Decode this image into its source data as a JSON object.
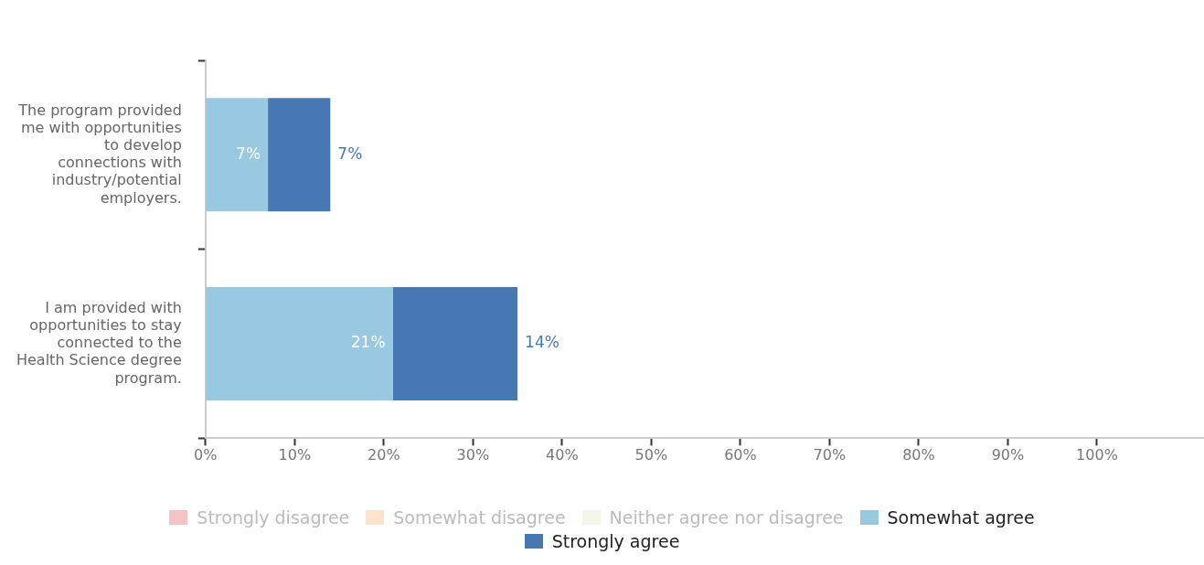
{
  "chart_data": {
    "type": "bar",
    "orientation": "horizontal",
    "stacked": true,
    "categories": [
      "The program provided me with opportunities to develop connections with industry/potential employers.",
      "I am provided with opportunities to stay connected to the Health Science degree program."
    ],
    "series": [
      {
        "name": "Strongly disagree",
        "color": "#f4c4c4",
        "values": [
          0,
          0
        ]
      },
      {
        "name": "Somewhat disagree",
        "color": "#fde3cc",
        "values": [
          0,
          0
        ]
      },
      {
        "name": "Neither agree nor disagree",
        "color": "#f5f5ea",
        "values": [
          0,
          0
        ]
      },
      {
        "name": "Somewhat agree",
        "color": "#98c9e0",
        "values": [
          7,
          21
        ],
        "value_labels": [
          "7%",
          "21%"
        ]
      },
      {
        "name": "Strongly agree",
        "color": "#4878b4",
        "values": [
          7,
          14
        ],
        "value_labels": [
          "7%",
          "14%"
        ]
      }
    ],
    "xlim": [
      0,
      112
    ],
    "xticks": [
      {
        "value": 0,
        "label": "0%"
      },
      {
        "value": 10,
        "label": "10%"
      },
      {
        "value": 20,
        "label": "20%"
      },
      {
        "value": 30,
        "label": "30%"
      },
      {
        "value": 40,
        "label": "40%"
      },
      {
        "value": 50,
        "label": "50%"
      },
      {
        "value": 60,
        "label": "60%"
      },
      {
        "value": 70,
        "label": "70%"
      },
      {
        "value": 80,
        "label": "80%"
      },
      {
        "value": 90,
        "label": "90%"
      },
      {
        "value": 100,
        "label": "100%"
      }
    ],
    "grid": false,
    "legend": "bottom"
  }
}
